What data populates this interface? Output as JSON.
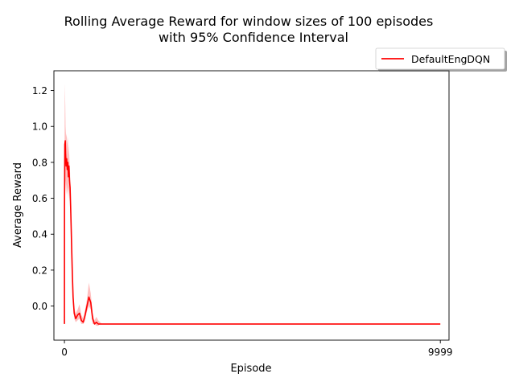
{
  "chart_data": {
    "type": "line",
    "title_line1": "Rolling Average Reward for window sizes of 100 episodes",
    "title_line2": "with 95% Confidence Interval",
    "xlabel": "Episode",
    "ylabel": "Average Reward",
    "xlim": [
      -280,
      10230
    ],
    "ylim": [
      -0.19,
      1.31
    ],
    "x_ticks": [
      0,
      9999
    ],
    "x_tick_labels": [
      "0",
      "9999"
    ],
    "y_ticks": [
      0.0,
      0.2,
      0.4,
      0.6,
      0.8,
      1.0,
      1.2
    ],
    "y_tick_labels": [
      "0.0",
      "0.2",
      "0.4",
      "0.6",
      "0.8",
      "1.0",
      "1.2"
    ],
    "grid": false,
    "legend_position": "top-right, outside plot area",
    "series": [
      {
        "name": "DefaultEngDQN",
        "color": "#ff0000",
        "band_color": "#ff0000",
        "x": [
          0,
          2,
          10,
          22,
          30,
          45,
          60,
          75,
          90,
          105,
          120,
          135,
          150,
          165,
          180,
          195,
          210,
          230,
          260,
          300,
          350,
          400,
          450,
          500,
          550,
          600,
          650,
          700,
          750,
          800,
          850,
          900,
          950,
          1000,
          5000,
          9999
        ],
        "y": [
          -0.1,
          0.55,
          0.9,
          0.92,
          0.85,
          0.78,
          0.82,
          0.76,
          0.8,
          0.72,
          0.78,
          0.7,
          0.66,
          0.55,
          0.43,
          0.3,
          0.18,
          0.05,
          -0.04,
          -0.07,
          -0.05,
          -0.04,
          -0.08,
          -0.09,
          -0.05,
          0.0,
          0.05,
          0.02,
          -0.07,
          -0.1,
          -0.09,
          -0.1,
          -0.1,
          -0.1,
          -0.1,
          -0.1
        ],
        "lower": [
          -0.1,
          0.4,
          0.66,
          0.7,
          0.68,
          0.62,
          0.68,
          0.62,
          0.66,
          0.6,
          0.66,
          0.6,
          0.58,
          0.48,
          0.38,
          0.26,
          0.14,
          0.01,
          -0.07,
          -0.09,
          -0.08,
          -0.07,
          -0.1,
          -0.1,
          -0.08,
          -0.03,
          0.0,
          -0.02,
          -0.1,
          -0.1,
          -0.11,
          -0.11,
          -0.1,
          -0.1,
          -0.1,
          -0.1
        ],
        "upper": [
          -0.1,
          0.8,
          1.24,
          1.12,
          1.0,
          0.94,
          0.96,
          0.9,
          0.94,
          0.84,
          0.9,
          0.8,
          0.74,
          0.62,
          0.48,
          0.34,
          0.22,
          0.09,
          -0.01,
          -0.04,
          -0.02,
          0.01,
          -0.05,
          -0.07,
          -0.02,
          0.04,
          0.13,
          0.07,
          -0.04,
          -0.08,
          -0.06,
          -0.08,
          -0.09,
          -0.1,
          -0.1,
          -0.1
        ]
      }
    ]
  }
}
